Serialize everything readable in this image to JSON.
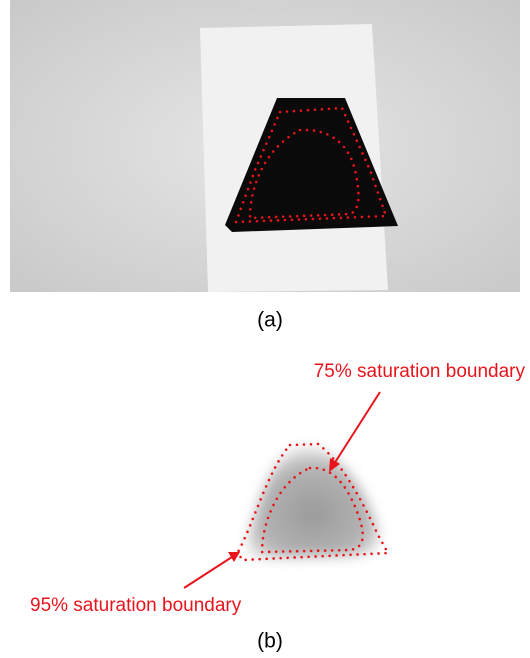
{
  "panel_a": {
    "caption": "(a)"
  },
  "panel_b": {
    "caption": "(b)",
    "annotations": [
      "75% saturation boundary",
      "95% saturation boundary"
    ]
  }
}
